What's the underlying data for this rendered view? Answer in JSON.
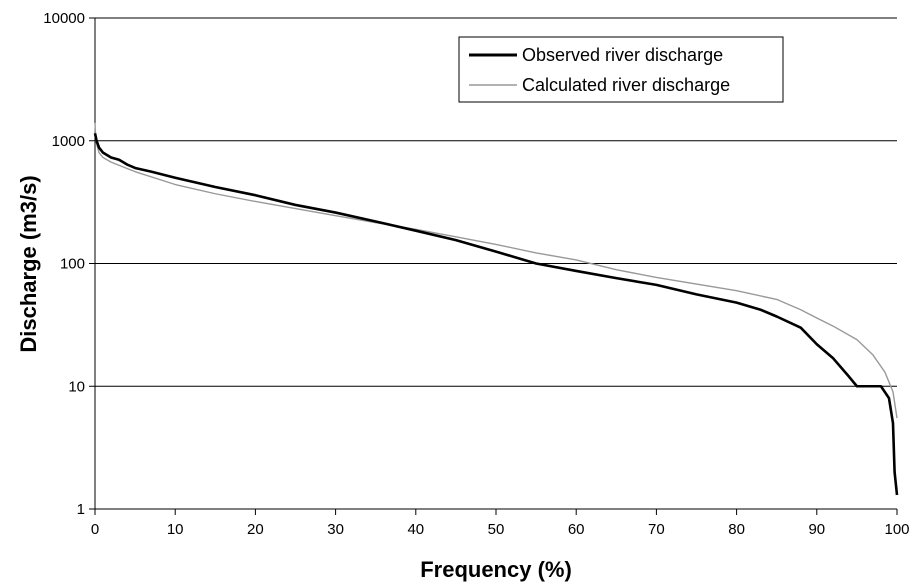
{
  "chart_data": {
    "type": "line",
    "title": "",
    "xlabel": "Frequency (%)",
    "ylabel": "Discharge (m3/s)",
    "xlim": [
      0,
      100
    ],
    "ylim": [
      1,
      10000
    ],
    "yscale": "log",
    "grid": "horizontal",
    "legend_position": "top-right",
    "x_ticks": [
      0,
      10,
      20,
      30,
      40,
      50,
      60,
      70,
      80,
      90,
      100
    ],
    "y_ticks": [
      1,
      10,
      100,
      1000,
      10000
    ],
    "series": [
      {
        "name": "Observed river discharge",
        "color": "#000000",
        "points": [
          [
            0,
            1150
          ],
          [
            0.2,
            1000
          ],
          [
            0.5,
            880
          ],
          [
            1,
            800
          ],
          [
            2,
            730
          ],
          [
            3,
            700
          ],
          [
            4,
            640
          ],
          [
            5,
            600
          ],
          [
            7,
            560
          ],
          [
            10,
            500
          ],
          [
            15,
            420
          ],
          [
            20,
            360
          ],
          [
            25,
            300
          ],
          [
            30,
            260
          ],
          [
            35,
            220
          ],
          [
            40,
            185
          ],
          [
            45,
            155
          ],
          [
            50,
            125
          ],
          [
            55,
            100
          ],
          [
            60,
            87
          ],
          [
            65,
            76
          ],
          [
            70,
            67
          ],
          [
            75,
            56
          ],
          [
            80,
            48
          ],
          [
            83,
            42
          ],
          [
            85,
            37
          ],
          [
            88,
            30
          ],
          [
            90,
            22
          ],
          [
            92,
            17
          ],
          [
            94,
            12
          ],
          [
            95,
            10
          ],
          [
            98,
            10
          ],
          [
            99,
            8
          ],
          [
            99.5,
            5
          ],
          [
            99.7,
            2
          ],
          [
            100,
            1.3
          ]
        ]
      },
      {
        "name": "Calculated river discharge",
        "color": "#999999",
        "points": [
          [
            0,
            1400
          ],
          [
            0.1,
            1000
          ],
          [
            0.5,
            800
          ],
          [
            1,
            730
          ],
          [
            2,
            670
          ],
          [
            5,
            560
          ],
          [
            10,
            440
          ],
          [
            15,
            370
          ],
          [
            20,
            320
          ],
          [
            25,
            280
          ],
          [
            30,
            245
          ],
          [
            35,
            215
          ],
          [
            40,
            190
          ],
          [
            45,
            165
          ],
          [
            50,
            143
          ],
          [
            55,
            122
          ],
          [
            60,
            107
          ],
          [
            65,
            89
          ],
          [
            70,
            77
          ],
          [
            75,
            68
          ],
          [
            80,
            60
          ],
          [
            85,
            51
          ],
          [
            88,
            42
          ],
          [
            90,
            36
          ],
          [
            92,
            31
          ],
          [
            95,
            24
          ],
          [
            97,
            18
          ],
          [
            98.5,
            13
          ],
          [
            99.5,
            9
          ],
          [
            100,
            5.5
          ]
        ]
      }
    ]
  }
}
